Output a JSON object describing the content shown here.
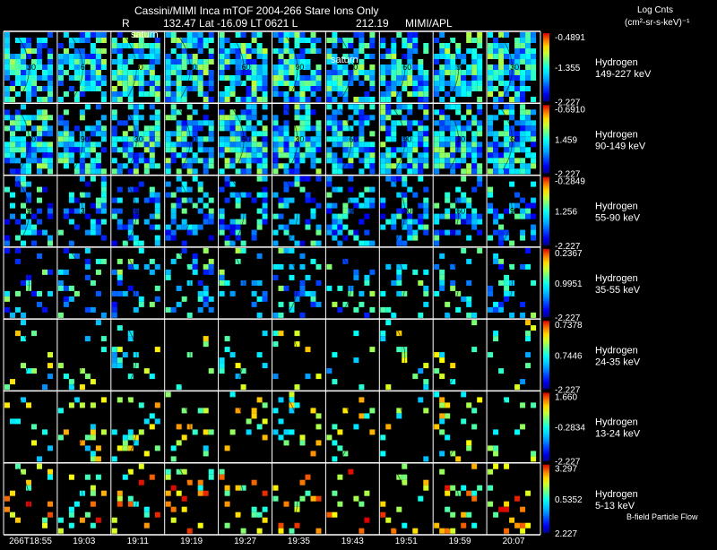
{
  "header": {
    "title": "Cassini/MIMI Inca mTOF  2004-266    Stare    Ions Only",
    "r_label": "R",
    "position_info": "132.47 Lat -16.09 LT 0621 L",
    "l_value": "212.19",
    "team": "MIMI/APL",
    "units_title": "Log Cnts",
    "units_expr": "(cm²-sr-s-keV)⁻¹",
    "saturn_marker": "saturn"
  },
  "chart_data": {
    "type": "heatmap",
    "title": "Cassini/MIMI Inca mTOF  2004-266    Stare    Ions Only",
    "time_labels": [
      "266T18:55",
      "19:03",
      "19:11",
      "19:19",
      "19:27",
      "19:35",
      "19:43",
      "19:51",
      "19:59",
      "20:07"
    ],
    "panels": [
      {
        "species": "Hydrogen",
        "energy": "149-227 keV",
        "cb_max": "-0.4891",
        "cb_mid": "-1.355",
        "cb_min": "-2.227",
        "density": 0.92,
        "bias": 0.42
      },
      {
        "species": "Hydrogen",
        "energy": "90-149 keV",
        "cb_max": "-0.6910",
        "cb_mid": "1.459",
        "cb_min": "-2.227",
        "density": 0.88,
        "bias": 0.4
      },
      {
        "species": "Hydrogen",
        "energy": "55-90 keV",
        "cb_max": "-0.2849",
        "cb_mid": "1.256",
        "cb_min": "-2.227",
        "density": 0.5,
        "bias": 0.34
      },
      {
        "species": "Hydrogen",
        "energy": "35-55 keV",
        "cb_max": "0.2367",
        "cb_mid": "0.9951",
        "cb_min": "-2.227",
        "density": 0.26,
        "bias": 0.4
      },
      {
        "species": "Hydrogen",
        "energy": "24-35 keV",
        "cb_max": "0.7378",
        "cb_mid": "0.7446",
        "cb_min": "-2.227",
        "density": 0.13,
        "bias": 0.55
      },
      {
        "species": "Hydrogen",
        "energy": "13-24 keV",
        "cb_max": "1.660",
        "cb_mid": "-0.2834",
        "cb_min": "-2.227",
        "density": 0.18,
        "bias": 0.62
      },
      {
        "species": "Hydrogen",
        "energy": "5-13 keV",
        "cb_max": "3.297",
        "cb_mid": "0.5352",
        "cb_min": "2.227",
        "density": 0.2,
        "bias": 0.74
      }
    ],
    "contour_labels": [
      "30",
      "60",
      "90"
    ],
    "footer_note": "B-field Particle Flow"
  }
}
